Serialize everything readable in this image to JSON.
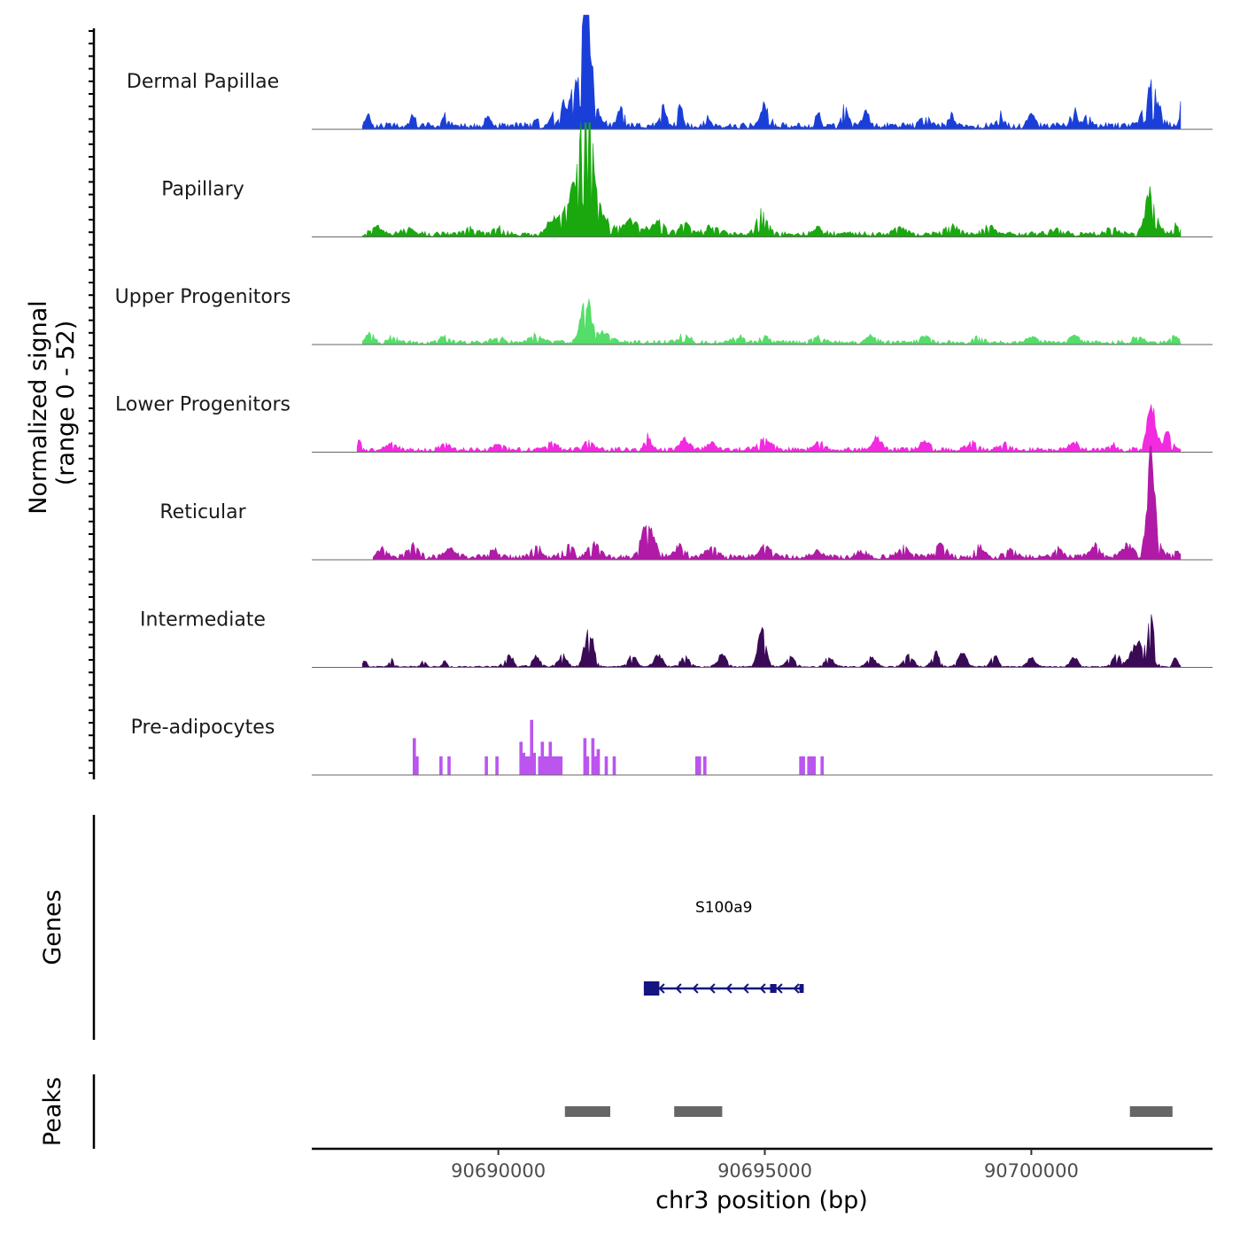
{
  "chart_data": {
    "type": "area",
    "title": "",
    "chromosome": "chr3",
    "xlabel": "chr3 position (bp)",
    "xlim": [
      90686500,
      90703400
    ],
    "x_ticks": [
      90690000,
      90695000,
      90700000
    ],
    "x_tick_labels": [
      "90690000",
      "90695000",
      "90700000"
    ],
    "signal_axis_title_line1": "Normalized signal",
    "signal_axis_title_line2": "(range 0 - 52)",
    "ylim": [
      0,
      52
    ],
    "genes_panel_title": "Genes",
    "peaks_panel_title": "Peaks",
    "series": [
      {
        "name": "Dermal Papillae",
        "color": "#1a3fd9",
        "start": 90687450,
        "end": 90702820,
        "baseline": 2.5,
        "peaks": [
          [
            90687550,
            6,
            40
          ],
          [
            90688400,
            6,
            50
          ],
          [
            90689000,
            5,
            50
          ],
          [
            90689800,
            5,
            45
          ],
          [
            90690700,
            4,
            40
          ],
          [
            90691000,
            5,
            40
          ],
          [
            90691200,
            6,
            40
          ],
          [
            90691650,
            52,
            80
          ],
          [
            90691550,
            24,
            200
          ],
          [
            90692300,
            9,
            60
          ],
          [
            90693100,
            10,
            50
          ],
          [
            90693400,
            15,
            40
          ],
          [
            90693900,
            8,
            50
          ],
          [
            90695000,
            10,
            80
          ],
          [
            90696000,
            6,
            50
          ],
          [
            90696500,
            10,
            60
          ],
          [
            90696900,
            8,
            50
          ],
          [
            90698000,
            7,
            60
          ],
          [
            90698500,
            6,
            50
          ],
          [
            90699400,
            7,
            50
          ],
          [
            90700000,
            7,
            60
          ],
          [
            90700800,
            8,
            60
          ],
          [
            90701050,
            7,
            50
          ],
          [
            90702250,
            22,
            120
          ],
          [
            90702800,
            12,
            20
          ]
        ]
      },
      {
        "name": "Papillary",
        "color": "#1aa80f",
        "start": 90687450,
        "end": 90702820,
        "baseline": 2.0,
        "peaks": [
          [
            90687700,
            4,
            80
          ],
          [
            90688300,
            3,
            100
          ],
          [
            90689500,
            3,
            100
          ],
          [
            90690000,
            3,
            100
          ],
          [
            90691000,
            6,
            100
          ],
          [
            90691300,
            10,
            120
          ],
          [
            90691650,
            62,
            90
          ],
          [
            90691650,
            24,
            250
          ],
          [
            90692500,
            7,
            150
          ],
          [
            90693000,
            6,
            120
          ],
          [
            90693500,
            6,
            100
          ],
          [
            90694000,
            4,
            120
          ],
          [
            90694950,
            12,
            90
          ],
          [
            90696000,
            3,
            120
          ],
          [
            90697500,
            3,
            120
          ],
          [
            90698500,
            4,
            120
          ],
          [
            90699200,
            4,
            100
          ],
          [
            90700500,
            3,
            120
          ],
          [
            90701500,
            3,
            120
          ],
          [
            90702250,
            22,
            100
          ],
          [
            90702700,
            5,
            60
          ]
        ]
      },
      {
        "name": "Upper Progenitors",
        "color": "#55dd6a",
        "start": 90687450,
        "end": 90702820,
        "baseline": 1.6,
        "peaks": [
          [
            90687600,
            4,
            80
          ],
          [
            90688000,
            3,
            80
          ],
          [
            90689000,
            3,
            80
          ],
          [
            90690000,
            3,
            90
          ],
          [
            90690700,
            4,
            100
          ],
          [
            90691650,
            22,
            100
          ],
          [
            90692000,
            5,
            120
          ],
          [
            90693500,
            4,
            100
          ],
          [
            90694500,
            3,
            100
          ],
          [
            90695000,
            3,
            80
          ],
          [
            90696000,
            3,
            90
          ],
          [
            90697000,
            3,
            90
          ],
          [
            90698000,
            3,
            90
          ],
          [
            90699000,
            3,
            90
          ],
          [
            90700000,
            3,
            90
          ],
          [
            90700800,
            4,
            80
          ],
          [
            90702000,
            3,
            80
          ],
          [
            90702700,
            4,
            60
          ]
        ]
      },
      {
        "name": "Lower Progenitors",
        "color": "#f22ae0",
        "start": 90687350,
        "end": 90702820,
        "baseline": 1.8,
        "peaks": [
          [
            90687400,
            5,
            40
          ],
          [
            90688000,
            3,
            80
          ],
          [
            90689000,
            3,
            80
          ],
          [
            90690000,
            3,
            80
          ],
          [
            90691000,
            4,
            90
          ],
          [
            90691700,
            4,
            90
          ],
          [
            90692800,
            7,
            60
          ],
          [
            90693500,
            6,
            80
          ],
          [
            90694000,
            4,
            80
          ],
          [
            90695000,
            5,
            120
          ],
          [
            90696000,
            4,
            100
          ],
          [
            90697100,
            6,
            80
          ],
          [
            90698000,
            4,
            90
          ],
          [
            90698900,
            5,
            80
          ],
          [
            90699500,
            4,
            80
          ],
          [
            90700800,
            4,
            80
          ],
          [
            90701500,
            3,
            80
          ],
          [
            90702250,
            22,
            80
          ],
          [
            90702550,
            8,
            80
          ]
        ]
      },
      {
        "name": "Reticular",
        "color": "#b01aa6",
        "start": 90687650,
        "end": 90702820,
        "baseline": 2.0,
        "peaks": [
          [
            90687800,
            4,
            80
          ],
          [
            90688400,
            6,
            100
          ],
          [
            90689100,
            5,
            90
          ],
          [
            90689900,
            4,
            90
          ],
          [
            90690700,
            6,
            90
          ],
          [
            90691300,
            6,
            100
          ],
          [
            90691800,
            7,
            100
          ],
          [
            90692800,
            18,
            110
          ],
          [
            90693400,
            6,
            90
          ],
          [
            90694000,
            5,
            90
          ],
          [
            90695000,
            6,
            100
          ],
          [
            90696000,
            3,
            90
          ],
          [
            90696800,
            3,
            90
          ],
          [
            90697600,
            5,
            100
          ],
          [
            90698300,
            7,
            90
          ],
          [
            90699000,
            6,
            80
          ],
          [
            90699600,
            5,
            90
          ],
          [
            90700500,
            4,
            80
          ],
          [
            90701200,
            6,
            90
          ],
          [
            90701800,
            6,
            90
          ],
          [
            90702250,
            50,
            50
          ],
          [
            90702250,
            15,
            130
          ],
          [
            90702750,
            3,
            50
          ]
        ]
      },
      {
        "name": "Intermediate",
        "color": "#3a0a56",
        "start": 90687450,
        "end": 90702820,
        "baseline": 0.5,
        "peaks": [
          [
            90687500,
            4,
            30
          ],
          [
            90688000,
            4,
            40
          ],
          [
            90688600,
            3,
            40
          ],
          [
            90689000,
            3,
            40
          ],
          [
            90690200,
            6,
            80
          ],
          [
            90690700,
            5,
            90
          ],
          [
            90691200,
            6,
            80
          ],
          [
            90691700,
            20,
            80
          ],
          [
            90692500,
            6,
            80
          ],
          [
            90693000,
            6,
            80
          ],
          [
            90693500,
            5,
            80
          ],
          [
            90694200,
            6,
            80
          ],
          [
            90694950,
            18,
            80
          ],
          [
            90695500,
            6,
            80
          ],
          [
            90696200,
            5,
            80
          ],
          [
            90697000,
            5,
            80
          ],
          [
            90697700,
            6,
            80
          ],
          [
            90698200,
            8,
            70
          ],
          [
            90698700,
            7,
            80
          ],
          [
            90699300,
            6,
            70
          ],
          [
            90700000,
            5,
            70
          ],
          [
            90700800,
            5,
            70
          ],
          [
            90701600,
            6,
            80
          ],
          [
            90702000,
            14,
            120
          ],
          [
            90702250,
            26,
            60
          ],
          [
            90702700,
            6,
            40
          ]
        ]
      },
      {
        "name": "Pre-adipocytes",
        "color": "#bb55ee",
        "start": 90688200,
        "end": 90696300,
        "baseline": 0,
        "blocks": [
          [
            90688400,
            90688450,
            20
          ],
          [
            90688450,
            90688500,
            10
          ],
          [
            90688900,
            90688950,
            10
          ],
          [
            90689050,
            90689100,
            10
          ],
          [
            90689750,
            90689800,
            10
          ],
          [
            90689950,
            90690000,
            10
          ],
          [
            90690400,
            90690450,
            18
          ],
          [
            90690450,
            90690500,
            12
          ],
          [
            90690500,
            90690600,
            10
          ],
          [
            90690600,
            90690650,
            30
          ],
          [
            90690650,
            90690700,
            12
          ],
          [
            90690750,
            90690800,
            10
          ],
          [
            90690800,
            90690850,
            18
          ],
          [
            90690850,
            90690950,
            10
          ],
          [
            90690950,
            90691000,
            18
          ],
          [
            90691000,
            90691200,
            10
          ],
          [
            90691600,
            90691650,
            20
          ],
          [
            90691650,
            90691700,
            10
          ],
          [
            90691750,
            90691800,
            20
          ],
          [
            90691800,
            90691850,
            10
          ],
          [
            90691850,
            90691900,
            14
          ],
          [
            90692000,
            90692050,
            10
          ],
          [
            90692150,
            90692200,
            10
          ],
          [
            90693700,
            90693800,
            10
          ],
          [
            90693850,
            90693900,
            10
          ],
          [
            90695650,
            90695750,
            10
          ],
          [
            90695800,
            90695950,
            10
          ],
          [
            90696050,
            90696100,
            10
          ]
        ]
      }
    ],
    "genes": [
      {
        "name": "S100a9",
        "color": "#141482",
        "start": 90692730,
        "end": 90695730,
        "strand": "-",
        "exons": [
          [
            90692730,
            90693020
          ],
          [
            90695100,
            90695220
          ],
          [
            90695650,
            90695730
          ]
        ]
      }
    ],
    "peak_regions": [
      {
        "start": 90691250,
        "end": 90692100
      },
      {
        "start": 90693300,
        "end": 90694200
      },
      {
        "start": 90701850,
        "end": 90702650
      }
    ],
    "peak_color": "#666666"
  }
}
